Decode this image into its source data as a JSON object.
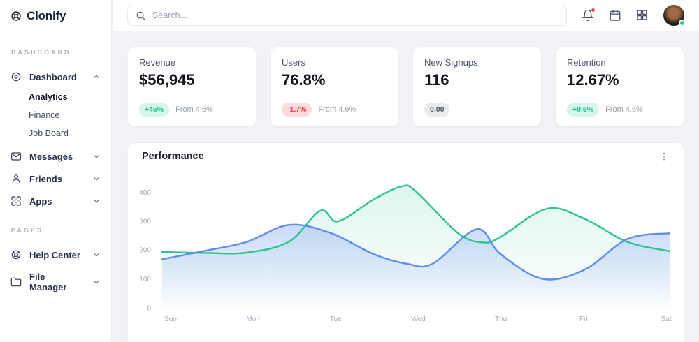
{
  "brand": {
    "name": "Clonify"
  },
  "topbar": {
    "search_placeholder": "Search..."
  },
  "sidebar": {
    "sections": [
      {
        "label": "DASHBOARD",
        "items": [
          {
            "label": "Dashboard",
            "expanded": true,
            "children": [
              {
                "label": "Analytics",
                "active": true
              },
              {
                "label": "Finance",
                "active": false
              },
              {
                "label": "Job Board",
                "active": false
              }
            ]
          },
          {
            "label": "Messages"
          },
          {
            "label": "Friends"
          },
          {
            "label": "Apps"
          }
        ]
      },
      {
        "label": "PAGES",
        "items": [
          {
            "label": "Help Center"
          },
          {
            "label": "File Manager"
          }
        ]
      }
    ]
  },
  "stats": [
    {
      "title": "Revenue",
      "value": "$56,945",
      "badge": "+45%",
      "badge_type": "positive",
      "note": "From 4.6%"
    },
    {
      "title": "Users",
      "value": "76.8%",
      "badge": "-1.7%",
      "badge_type": "negative",
      "note": "From 4.6%"
    },
    {
      "title": "New Signups",
      "value": "116",
      "badge": "0.00",
      "badge_type": "neutral",
      "note": ""
    },
    {
      "title": "Retention",
      "value": "12.67%",
      "badge": "+0.6%",
      "badge_type": "positive",
      "note": "From 4.6%"
    }
  ],
  "performance": {
    "title": "Performance"
  },
  "chart_data": {
    "type": "area",
    "title": "Performance",
    "categories": [
      "Sun",
      "Mon",
      "Tue",
      "Wed",
      "Thu",
      "Fri",
      "Sat"
    ],
    "xlabel": "",
    "ylabel": "",
    "y_ticks": [
      0,
      100,
      200,
      300,
      400
    ],
    "ylim": [
      0,
      460
    ],
    "grid": false,
    "legend": false,
    "series": [
      {
        "name": "series-green",
        "color": "#2cc58b",
        "fill_top": "rgba(44,197,139,0.16)",
        "fill_bottom": "rgba(44,197,139,0)",
        "points": [
          [
            0,
            193
          ],
          [
            0.5,
            190
          ],
          [
            1,
            191
          ],
          [
            1.5,
            229
          ],
          [
            1.87,
            336
          ],
          [
            2.08,
            299
          ],
          [
            2.5,
            375
          ],
          [
            2.83,
            420
          ],
          [
            3,
            403
          ],
          [
            3.5,
            258
          ],
          [
            3.8,
            226
          ],
          [
            4,
            245
          ],
          [
            4.55,
            343
          ],
          [
            5,
            307
          ],
          [
            5.5,
            228
          ],
          [
            6,
            196
          ]
        ]
      },
      {
        "name": "series-blue",
        "color": "#5f8cef",
        "fill_top": "rgba(95,140,239,0.32)",
        "fill_bottom": "rgba(95,140,239,0.02)",
        "points": [
          [
            0,
            168
          ],
          [
            0.5,
            197
          ],
          [
            1,
            228
          ],
          [
            1.5,
            287
          ],
          [
            2,
            258
          ],
          [
            2.5,
            186
          ],
          [
            2.9,
            152
          ],
          [
            3.2,
            153
          ],
          [
            3.72,
            272
          ],
          [
            4,
            186
          ],
          [
            4.5,
            100
          ],
          [
            5,
            133
          ],
          [
            5.5,
            238
          ],
          [
            6,
            258
          ]
        ]
      }
    ]
  },
  "colors": {
    "accent_green": "#2cc58b",
    "accent_blue": "#5f8cef",
    "positive_text": "#10c488",
    "positive_bg": "#d8f5ea",
    "negative_text": "#e54850",
    "negative_bg": "#fbdbde",
    "neutral_text": "#525a66",
    "neutral_bg": "#e9ebef",
    "notification_dot": "#f0494e",
    "online_dot": "#2fc79c"
  }
}
